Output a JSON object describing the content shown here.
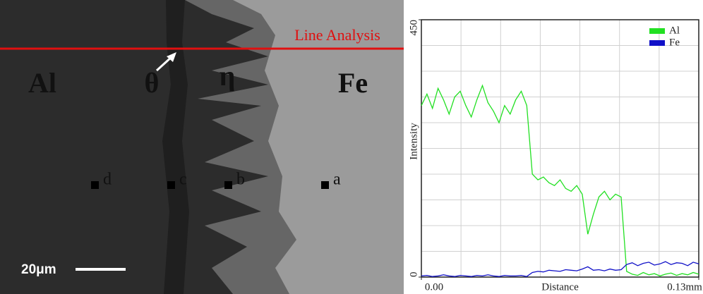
{
  "micrograph": {
    "line_label": "Line Analysis",
    "scale_bar": "20μm",
    "phases": [
      "Al",
      "θ",
      "η",
      "Fe"
    ],
    "points": [
      "d",
      "c",
      "b",
      "a"
    ]
  },
  "chart_data": {
    "type": "line",
    "xlabel": "Distance",
    "ylabel": "Intensity",
    "xlim": [
      0,
      0.13
    ],
    "ylim": [
      0,
      450
    ],
    "xticks": [
      {
        "value": 0,
        "label": "0.00"
      },
      {
        "value": 0.13,
        "label": "0.13mm"
      }
    ],
    "yticks": [
      0,
      450
    ],
    "grid": true,
    "legend": "top-right",
    "x": [
      0,
      0.0026,
      0.0052,
      0.0078,
      0.0104,
      0.013,
      0.0156,
      0.0182,
      0.0208,
      0.0234,
      0.026,
      0.0286,
      0.0312,
      0.0338,
      0.0364,
      0.039,
      0.0416,
      0.0442,
      0.0468,
      0.0494,
      0.052,
      0.0546,
      0.0572,
      0.0598,
      0.0624,
      0.065,
      0.0676,
      0.0702,
      0.0728,
      0.0754,
      0.078,
      0.0806,
      0.0832,
      0.0858,
      0.0884,
      0.091,
      0.0936,
      0.0962,
      0.0988,
      0.1014,
      0.104,
      0.1066,
      0.1092,
      0.1118,
      0.1144,
      0.117,
      0.1196,
      0.1222,
      0.1248,
      0.1274,
      0.13
    ],
    "series": [
      {
        "name": "Al",
        "color": "#22e022",
        "values": [
          300,
          320,
          295,
          330,
          310,
          285,
          315,
          325,
          300,
          280,
          310,
          335,
          305,
          290,
          270,
          300,
          285,
          310,
          325,
          300,
          180,
          170,
          175,
          165,
          160,
          170,
          155,
          150,
          160,
          145,
          75,
          110,
          140,
          150,
          135,
          145,
          140,
          10,
          5,
          3,
          8,
          4,
          6,
          2,
          5,
          7,
          3,
          6,
          4,
          8,
          5
        ]
      },
      {
        "name": "Fe",
        "color": "#1010c8",
        "values": [
          2,
          3,
          1,
          2,
          4,
          2,
          1,
          3,
          2,
          1,
          3,
          2,
          4,
          2,
          1,
          3,
          2,
          2,
          3,
          1,
          8,
          10,
          9,
          12,
          11,
          10,
          13,
          12,
          11,
          14,
          18,
          12,
          13,
          11,
          14,
          12,
          13,
          22,
          25,
          20,
          24,
          26,
          21,
          23,
          27,
          22,
          25,
          24,
          20,
          26,
          23
        ]
      }
    ]
  }
}
